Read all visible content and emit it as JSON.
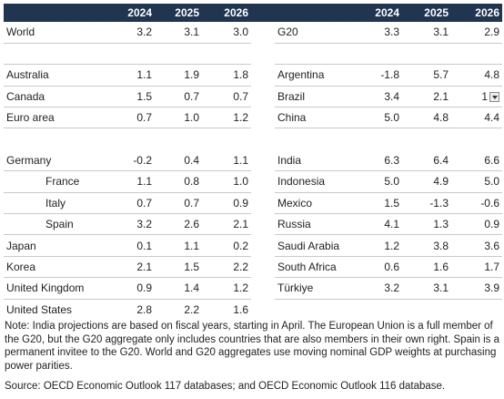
{
  "years": [
    "2024",
    "2025",
    "2026"
  ],
  "left": [
    {
      "name": "World",
      "v": [
        "3.2",
        "3.1",
        "3.0"
      ]
    },
    {
      "name": "Australia",
      "v": [
        "1.1",
        "1.9",
        "1.8"
      ]
    },
    {
      "name": "Canada",
      "v": [
        "1.5",
        "0.7",
        "0.7"
      ]
    },
    {
      "name": "Euro area",
      "v": [
        "0.7",
        "1.0",
        "1.2"
      ]
    },
    {
      "name": "Germany",
      "v": [
        "-0.2",
        "0.4",
        "1.1"
      ]
    },
    {
      "name": "France",
      "v": [
        "1.1",
        "0.8",
        "1.0"
      ]
    },
    {
      "name": "Italy",
      "v": [
        "0.7",
        "0.7",
        "0.9"
      ]
    },
    {
      "name": "Spain",
      "v": [
        "3.2",
        "2.6",
        "2.1"
      ]
    },
    {
      "name": "Japan",
      "v": [
        "0.1",
        "1.1",
        "0.2"
      ]
    },
    {
      "name": "Korea",
      "v": [
        "2.1",
        "1.5",
        "2.2"
      ]
    },
    {
      "name": "United Kingdom",
      "v": [
        "0.9",
        "1.4",
        "1.2"
      ]
    },
    {
      "name": "United States",
      "v": [
        "2.8",
        "2.2",
        "1.6"
      ]
    }
  ],
  "right": [
    {
      "name": "G20",
      "v": [
        "3.3",
        "3.1",
        "2.9"
      ]
    },
    {
      "name": "Argentina",
      "v": [
        "-1.8",
        "5.7",
        "4.8"
      ]
    },
    {
      "name": "Brazil",
      "v": [
        "3.4",
        "2.1",
        "1"
      ]
    },
    {
      "name": "China",
      "v": [
        "5.0",
        "4.8",
        "4.4"
      ]
    },
    {
      "name": "India",
      "v": [
        "6.3",
        "6.4",
        "6.6"
      ]
    },
    {
      "name": "Indonesia",
      "v": [
        "5.0",
        "4.9",
        "5.0"
      ]
    },
    {
      "name": "Mexico",
      "v": [
        "1.5",
        "-1.3",
        "-0.6"
      ]
    },
    {
      "name": "Russia",
      "v": [
        "4.1",
        "1.3",
        "0.9"
      ]
    },
    {
      "name": "Saudi Arabia",
      "v": [
        "1.2",
        "3.8",
        "3.6"
      ]
    },
    {
      "name": "South Africa",
      "v": [
        "0.6",
        "1.6",
        "1.7"
      ]
    },
    {
      "name": "Türkiye",
      "v": [
        "3.2",
        "3.1",
        "3.9"
      ]
    }
  ],
  "note": "Note: India projections are based on fiscal years, starting in April. The European Union is a full member of the G20, but the G20 aggregate only includes countries that are also members in their own right. Spain is a permanent invitee to the G20. World and G20 aggregates use moving nominal GDP weights at purchasing power parities.",
  "source": "Source: OECD Economic Outlook 117 databases; and OECD Economic Outlook 116 database."
}
